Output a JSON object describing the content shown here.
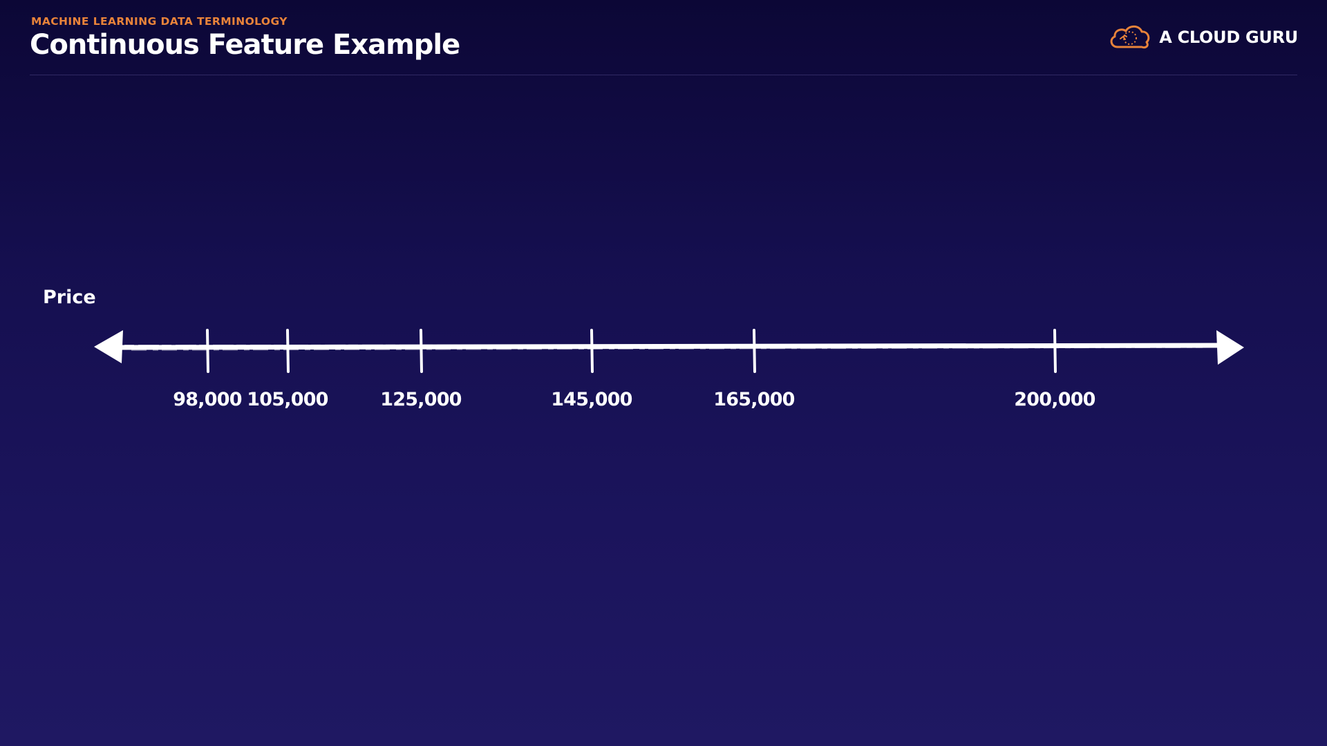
{
  "header": {
    "kicker": "MACHINE LEARNING DATA TERMINOLOGY",
    "title": "Continuous Feature Example"
  },
  "brand": {
    "name": "A CLOUD GURU",
    "logo_icon": "cloud-icon",
    "accent": "#e8833a"
  },
  "number_line": {
    "label": "Price",
    "ticks": [
      {
        "value": 98000,
        "label": "98,000"
      },
      {
        "value": 105000,
        "label": "105,000"
      },
      {
        "value": 125000,
        "label": "125,000"
      },
      {
        "value": 145000,
        "label": "145,000"
      },
      {
        "value": 165000,
        "label": "165,000"
      },
      {
        "value": 200000,
        "label": "200,000"
      }
    ]
  }
}
